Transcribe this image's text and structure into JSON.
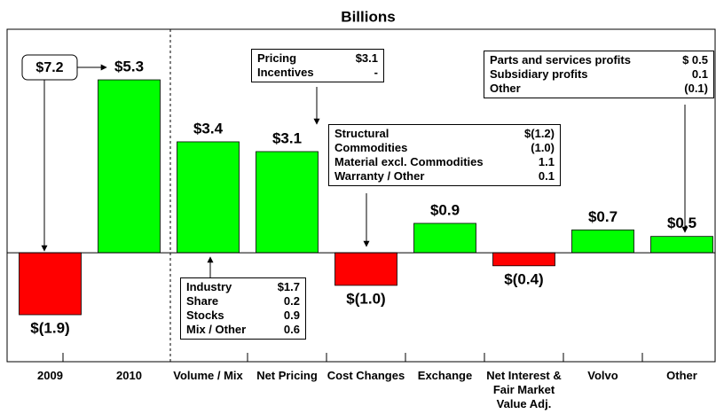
{
  "chart_data": {
    "type": "bar",
    "title": "Billions",
    "categories": [
      "2009",
      "2010",
      "Volume / Mix",
      "Net Pricing",
      "Cost Changes",
      "Exchange",
      "Net Interest & Fair Market Value Adj.",
      "Volvo",
      "Other"
    ],
    "values": [
      -1.9,
      5.3,
      3.4,
      3.1,
      -1.0,
      0.9,
      -0.4,
      0.7,
      0.5
    ],
    "value_labels": [
      "$(1.9)",
      "$5.3",
      "$3.4",
      "$3.1",
      "$(1.0)",
      "$0.9",
      "$(0.4)",
      "$0.7",
      "$0.5"
    ],
    "colors": [
      "#ff0000",
      "#00ff00",
      "#00ff00",
      "#00ff00",
      "#ff0000",
      "#00ff00",
      "#ff0000",
      "#00ff00",
      "#00ff00"
    ],
    "ylim": [
      -3.34,
      6.85
    ],
    "callout": "$7.2",
    "annotations": [
      {
        "rows": [
          [
            "Pricing",
            "$3.1"
          ],
          [
            "Incentives",
            "-"
          ]
        ]
      },
      {
        "rows": [
          [
            "Structural",
            "$(1.2)"
          ],
          [
            "Commodities",
            "(1.0)"
          ],
          [
            "Material excl. Commodities",
            "1.1"
          ],
          [
            "Warranty / Other",
            "0.1"
          ]
        ]
      },
      {
        "rows": [
          [
            "Industry",
            "$1.7"
          ],
          [
            "Share",
            "0.2"
          ],
          [
            "Stocks",
            "0.9"
          ],
          [
            "Mix / Other",
            "0.6"
          ]
        ]
      },
      {
        "rows": [
          [
            "Parts and services profits",
            "$ 0.5"
          ],
          [
            "Subsidiary profits",
            "0.1"
          ],
          [
            "Other",
            "(0.1)"
          ]
        ]
      }
    ]
  }
}
